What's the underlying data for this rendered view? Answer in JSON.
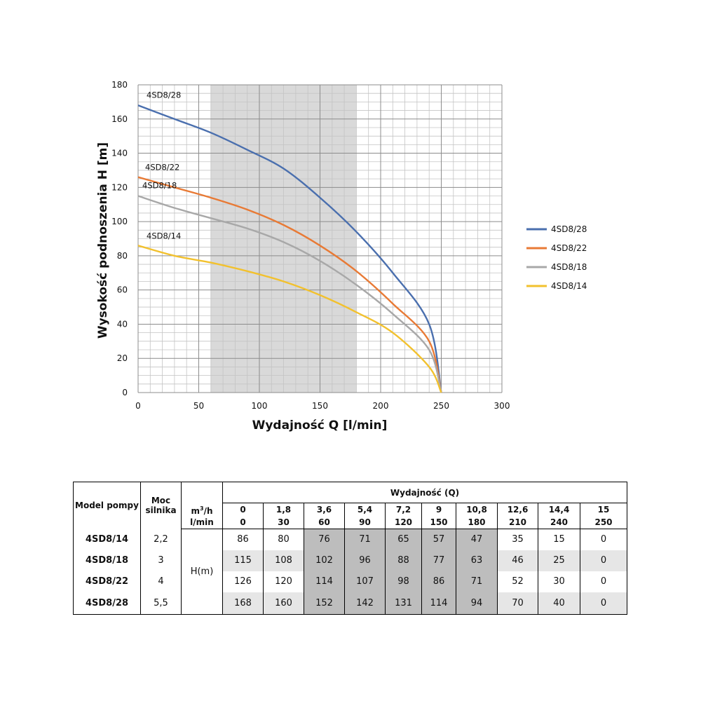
{
  "chart_data": {
    "type": "line",
    "xlabel": "Wydajność Q [l/min]",
    "ylabel": "Wysokość podnoszenia H [m]",
    "xlim": [
      0,
      300
    ],
    "ylim": [
      0,
      180
    ],
    "x_ticks": [
      "0",
      "50",
      "100",
      "150",
      "200",
      "250",
      "300"
    ],
    "y_ticks": [
      "0",
      "20",
      "40",
      "60",
      "80",
      "100",
      "120",
      "140",
      "160",
      "180"
    ],
    "grid": true,
    "legend": "right",
    "highlight_range_x": [
      60,
      180
    ],
    "series": [
      {
        "name": "4SD8/28",
        "color": "#4a6fae",
        "x": [
          0,
          30,
          60,
          90,
          120,
          150,
          180,
          210,
          240,
          250
        ],
        "y": [
          168,
          160,
          152,
          142,
          131,
          114,
          94,
          70,
          40,
          0
        ]
      },
      {
        "name": "4SD8/22",
        "color": "#e87a35",
        "x": [
          0,
          30,
          60,
          90,
          120,
          150,
          180,
          210,
          240,
          250
        ],
        "y": [
          126,
          120,
          114,
          107,
          98,
          86,
          71,
          52,
          30,
          0
        ]
      },
      {
        "name": "4SD8/18",
        "color": "#a8a8a8",
        "x": [
          0,
          30,
          60,
          90,
          120,
          150,
          180,
          210,
          240,
          250
        ],
        "y": [
          115,
          108,
          102,
          96,
          88,
          77,
          63,
          46,
          25,
          0
        ]
      },
      {
        "name": "4SD8/14",
        "color": "#f2c12e",
        "x": [
          0,
          30,
          60,
          90,
          120,
          150,
          180,
          210,
          240,
          250
        ],
        "y": [
          86,
          80,
          76,
          71,
          65,
          57,
          47,
          35,
          15,
          0
        ]
      }
    ]
  },
  "table": {
    "header_model": "Model pompy",
    "header_power": [
      "Moc",
      "silnika"
    ],
    "header_flow": "Wydajność (Q)",
    "unit_m3h": "m",
    "unit_m3h_sup": "3",
    "unit_m3h_tail": "/h",
    "unit_lmin": "l/min",
    "h_label": "H(m)",
    "m3h_values": [
      "0",
      "1,8",
      "3,6",
      "5,4",
      "7,2",
      "9",
      "10,8",
      "12,6",
      "14,4",
      "15"
    ],
    "lmin_values": [
      "0",
      "30",
      "60",
      "90",
      "120",
      "150",
      "180",
      "210",
      "240",
      "250"
    ],
    "rows": [
      {
        "model": "4SD8/14",
        "power": "2,2",
        "values": [
          "86",
          "80",
          "76",
          "71",
          "65",
          "57",
          "47",
          "35",
          "15",
          "0"
        ]
      },
      {
        "model": "4SD8/18",
        "power": "3",
        "values": [
          "115",
          "108",
          "102",
          "96",
          "88",
          "77",
          "63",
          "46",
          "25",
          "0"
        ]
      },
      {
        "model": "4SD8/22",
        "power": "4",
        "values": [
          "126",
          "120",
          "114",
          "107",
          "98",
          "86",
          "71",
          "52",
          "30",
          "0"
        ]
      },
      {
        "model": "4SD8/28",
        "power": "5,5",
        "values": [
          "168",
          "160",
          "152",
          "142",
          "131",
          "114",
          "94",
          "70",
          "40",
          "0"
        ]
      }
    ]
  }
}
